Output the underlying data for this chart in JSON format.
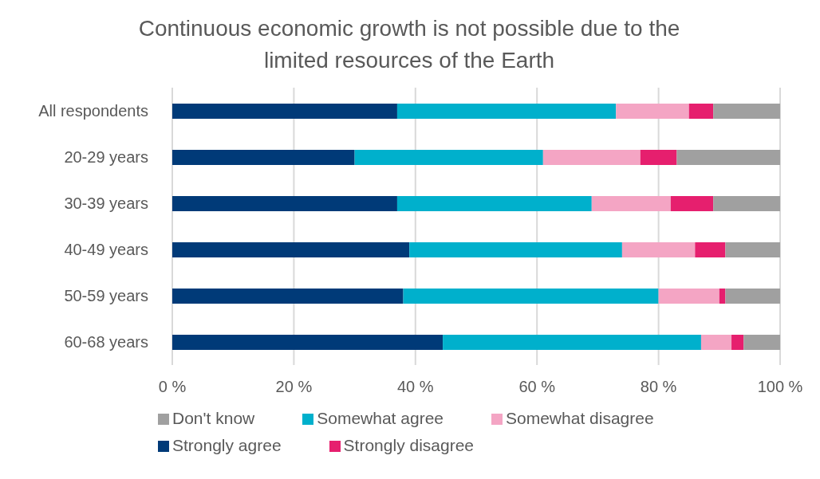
{
  "chart_data": {
    "type": "bar",
    "orientation": "horizontal",
    "stacked": true,
    "title": "Continuous economic growth is not possible due to the limited resources of the Earth",
    "categories": [
      "All respondents",
      "20-29 years",
      "30-39 years",
      "40-49 years",
      "50-59 years",
      "60-68 years"
    ],
    "series": [
      {
        "name": "Strongly agree",
        "color": "#003a78",
        "values": [
          37,
          30,
          37,
          39,
          38,
          44.5
        ]
      },
      {
        "name": "Somewhat agree",
        "color": "#00b0cc",
        "values": [
          36,
          31,
          32,
          35,
          42,
          42.5
        ]
      },
      {
        "name": "Somewhat disagree",
        "color": "#f4a5c4",
        "values": [
          12,
          16,
          13,
          12,
          10,
          5
        ]
      },
      {
        "name": "Strongly disagree",
        "color": "#e61f6e",
        "values": [
          4,
          6,
          7,
          5,
          1,
          2
        ]
      },
      {
        "name": "Don't know",
        "color": "#a0a0a0",
        "values": [
          11,
          17,
          11,
          9,
          9,
          6
        ]
      }
    ],
    "xlim": [
      0,
      100
    ],
    "xticks": [
      {
        "value": 0,
        "label": "0 %"
      },
      {
        "value": 20,
        "label": "20 %"
      },
      {
        "value": 40,
        "label": "40 %"
      },
      {
        "value": 60,
        "label": "60 %"
      },
      {
        "value": 80,
        "label": "80 %"
      },
      {
        "value": 100,
        "label": "100 %"
      }
    ],
    "grid": "x",
    "legend": "bottom"
  }
}
